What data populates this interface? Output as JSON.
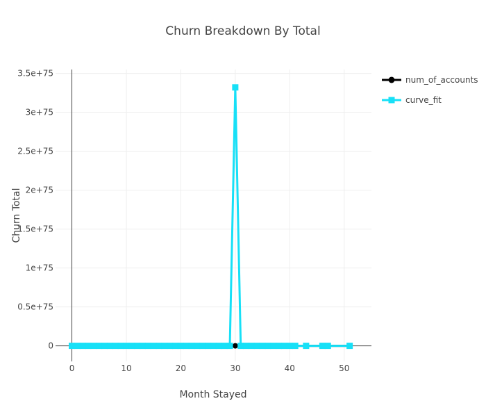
{
  "chart_data": {
    "type": "line",
    "title": "Churn Breakdown By Total",
    "xlabel": "Month Stayed",
    "ylabel": "Churn Total",
    "xlim": [
      -3,
      55
    ],
    "ylim": [
      -2e+74,
      3.55e+75
    ],
    "x_ticks": [
      0,
      10,
      20,
      30,
      40,
      50
    ],
    "x_tick_labels": [
      "0",
      "10",
      "20",
      "30",
      "40",
      "50"
    ],
    "y_ticks": [
      0,
      5e+74,
      1e+75,
      1.5e+75,
      2e+75,
      2.5e+75,
      3e+75,
      3.5e+75
    ],
    "y_tick_labels": [
      "0",
      "0.5e+75",
      "1e+75",
      "1.5e+75",
      "2e+75",
      "2.5e+75",
      "3e+75",
      "3.5e+75"
    ],
    "grid": true,
    "legend_position": "top-right",
    "series": [
      {
        "name": "num_of_accounts",
        "color": "#000000",
        "marker": "circle",
        "x": [
          0,
          1,
          2,
          3,
          4,
          5,
          6,
          7,
          8,
          9,
          10,
          11,
          12,
          13,
          14,
          15,
          16,
          17,
          18,
          19,
          20,
          21,
          22,
          23,
          24,
          25,
          26,
          27,
          28,
          29,
          30,
          31,
          32,
          33,
          34,
          35,
          36,
          37,
          38,
          39,
          40,
          41,
          43,
          46,
          47,
          51
        ],
        "y": [
          0,
          0,
          0,
          0,
          0,
          0,
          0,
          0,
          0,
          0,
          0,
          0,
          0,
          0,
          0,
          0,
          0,
          0,
          0,
          0,
          0,
          0,
          0,
          0,
          0,
          0,
          0,
          0,
          0,
          0,
          0,
          0,
          0,
          0,
          0,
          0,
          0,
          0,
          0,
          0,
          0,
          0,
          0,
          0,
          0,
          0
        ]
      },
      {
        "name": "curve_fit",
        "color": "#17e0f7",
        "marker": "square",
        "x": [
          0,
          1,
          2,
          3,
          4,
          5,
          6,
          7,
          8,
          9,
          10,
          11,
          12,
          13,
          14,
          15,
          16,
          17,
          18,
          19,
          20,
          21,
          22,
          23,
          24,
          25,
          26,
          27,
          28,
          29,
          30,
          31,
          32,
          33,
          34,
          35,
          36,
          37,
          38,
          39,
          40,
          41,
          43,
          46,
          47,
          51
        ],
        "y": [
          0,
          0,
          0,
          0,
          0,
          0,
          0,
          0,
          0,
          0,
          0,
          0,
          0,
          0,
          0,
          0,
          0,
          0,
          0,
          0,
          0,
          0,
          0,
          0,
          0,
          0,
          0,
          0,
          0,
          0,
          3.32e+75,
          0,
          0,
          0,
          0,
          0,
          0,
          0,
          0,
          0,
          0,
          0,
          0,
          0,
          0,
          0
        ]
      }
    ]
  }
}
